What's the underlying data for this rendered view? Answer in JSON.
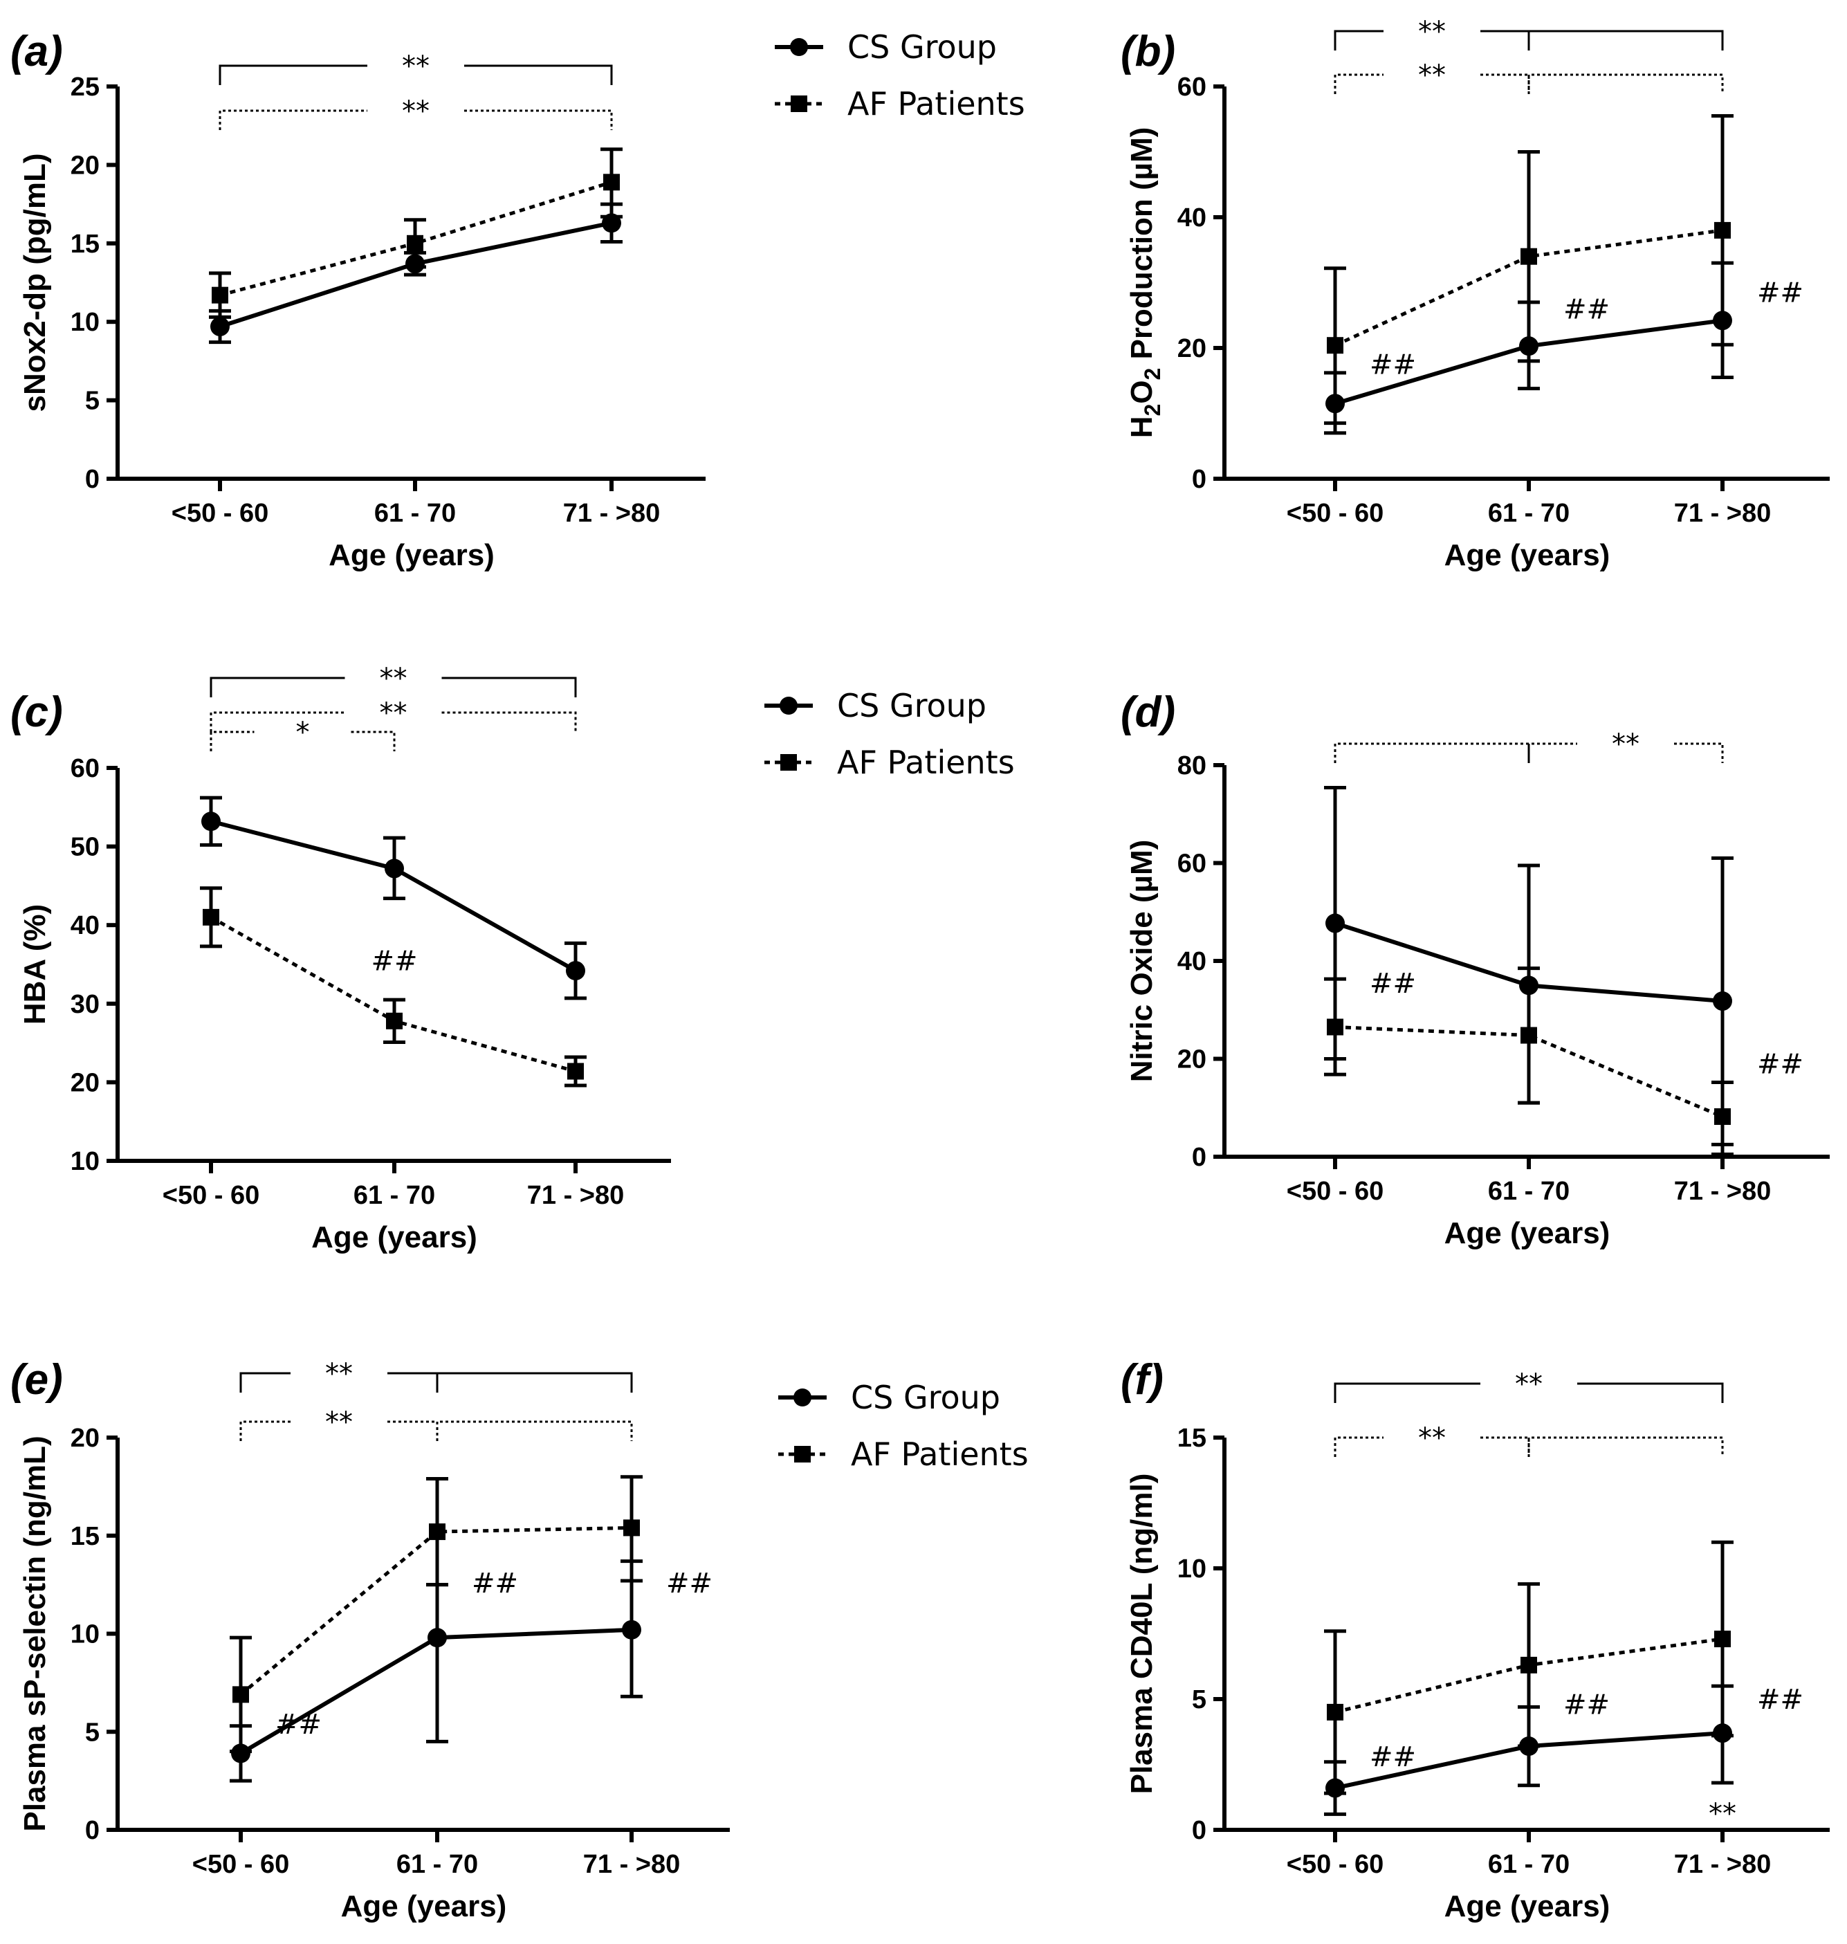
{
  "legend": {
    "entries": [
      {
        "name": "CS Group",
        "marker": "circle",
        "line": "solid"
      },
      {
        "name": "AF Patients",
        "marker": "square",
        "line": "dashed"
      }
    ]
  },
  "chart_data": [
    {
      "id": "a",
      "panel_label": "(a)",
      "type": "line",
      "categories": [
        "<50 - 60",
        "61 - 70",
        "71 - >80"
      ],
      "xlabel": "Age (years)",
      "ylabel": "sNox2-dp (pg/mL)",
      "ylim": [
        0,
        25
      ],
      "yticks": [
        0,
        5,
        10,
        15,
        20,
        25
      ],
      "series": [
        {
          "name": "CS Group",
          "values": [
            9.7,
            13.7,
            16.3
          ],
          "err_lo": [
            8.7,
            13.0,
            15.1
          ],
          "err_hi": [
            10.7,
            14.4,
            17.5
          ]
        },
        {
          "name": "AF Patients",
          "values": [
            11.7,
            15.0,
            18.9
          ],
          "err_lo": [
            10.3,
            13.5,
            16.7
          ],
          "err_hi": [
            13.1,
            16.5,
            21.0
          ]
        }
      ],
      "brackets": [
        {
          "from": 0,
          "to": 2,
          "label": "**",
          "style": "solid"
        },
        {
          "from": 0,
          "to": 2,
          "label": "**",
          "style": "dotted"
        }
      ],
      "annotations": []
    },
    {
      "id": "b",
      "panel_label": "(b)",
      "type": "line",
      "categories": [
        "<50 - 60",
        "61 - 70",
        "71 - >80"
      ],
      "xlabel": "Age (years)",
      "ylabel_parts": [
        "H",
        "2",
        "O",
        "2",
        " Production (µM)"
      ],
      "ylim": [
        0,
        60
      ],
      "yticks": [
        0,
        20,
        40,
        60
      ],
      "series": [
        {
          "name": "CS Group",
          "values": [
            11.5,
            20.3,
            24.2
          ],
          "err_lo": [
            7.0,
            13.8,
            15.5
          ],
          "err_hi": [
            16.2,
            27.0,
            33.0
          ]
        },
        {
          "name": "AF Patients",
          "values": [
            20.4,
            34.0,
            38.0
          ],
          "err_lo": [
            8.5,
            18.0,
            20.5
          ],
          "err_hi": [
            32.2,
            50.0,
            55.5
          ]
        }
      ],
      "brackets": [
        {
          "from": 0,
          "to": 1,
          "label": "**",
          "style": "solid"
        },
        {
          "from": 1,
          "to": 2,
          "label": "",
          "style": "solid"
        },
        {
          "from": 0,
          "to": 1,
          "label": "**",
          "style": "dotted"
        },
        {
          "from": 1,
          "to": 2,
          "label": "",
          "style": "dotted"
        }
      ],
      "annotations": [
        {
          "label": "##",
          "x": 0,
          "y": 17.5,
          "side": "right"
        },
        {
          "label": "##",
          "x": 1,
          "y": 26,
          "side": "right"
        },
        {
          "label": "##",
          "x": 2,
          "y": 28.5,
          "side": "right"
        }
      ]
    },
    {
      "id": "c",
      "panel_label": "(c)",
      "type": "line",
      "categories": [
        "<50 - 60",
        "61 - 70",
        "71 - >80"
      ],
      "xlabel": "Age (years)",
      "ylabel": "HBA (%)",
      "ylim": [
        10,
        60
      ],
      "yticks": [
        10,
        20,
        30,
        40,
        50,
        60
      ],
      "series": [
        {
          "name": "CS Group",
          "values": [
            53.2,
            47.2,
            34.2
          ],
          "err_lo": [
            50.2,
            43.4,
            30.7
          ],
          "err_hi": [
            56.2,
            51.1,
            37.7
          ]
        },
        {
          "name": "AF Patients",
          "values": [
            41.0,
            27.8,
            21.4
          ],
          "err_lo": [
            37.3,
            25.1,
            19.6
          ],
          "err_hi": [
            44.7,
            30.5,
            23.2
          ]
        }
      ],
      "brackets": [
        {
          "from": 0,
          "to": 2,
          "label": "**",
          "style": "solid"
        },
        {
          "from": 0,
          "to": 2,
          "label": "**",
          "style": "dotted"
        },
        {
          "from": 0,
          "to": 1,
          "label": "*",
          "style": "dotted"
        }
      ],
      "annotations": [
        {
          "label": "##",
          "x": 1,
          "y": 35.5,
          "side": "center"
        }
      ]
    },
    {
      "id": "d",
      "panel_label": "(d)",
      "type": "line",
      "categories": [
        "<50 - 60",
        "61 - 70",
        "71 - >80"
      ],
      "xlabel": "Age (years)",
      "ylabel": "Nitric Oxide (µM)",
      "ylim": [
        0,
        80
      ],
      "yticks": [
        0,
        20,
        40,
        60,
        80
      ],
      "series": [
        {
          "name": "CS Group",
          "values": [
            47.7,
            35.0,
            31.8
          ],
          "err_lo": [
            20.0,
            11.0,
            2.5
          ],
          "err_hi": [
            75.4,
            59.5,
            61.0
          ]
        },
        {
          "name": "AF Patients",
          "values": [
            26.5,
            24.8,
            8.2
          ],
          "err_lo": [
            16.8,
            11.0,
            0.5
          ],
          "err_hi": [
            36.3,
            38.5,
            15.2
          ]
        }
      ],
      "brackets": [
        {
          "from": 0,
          "to": 1,
          "label": "",
          "style": "dotted"
        },
        {
          "from": 1,
          "to": 2,
          "label": "**",
          "style": "dotted"
        }
      ],
      "annotations": [
        {
          "label": "##",
          "x": 0,
          "y": 35.5,
          "side": "right"
        },
        {
          "label": "##",
          "x": 2,
          "y": 19.0,
          "side": "right"
        }
      ]
    },
    {
      "id": "e",
      "panel_label": "(e)",
      "type": "line",
      "categories": [
        "<50 - 60",
        "61 - 70",
        "71 - >80"
      ],
      "xlabel": "Age (years)",
      "ylabel": "Plasma sP-selectin (ng/mL)",
      "ylim": [
        0,
        20
      ],
      "yticks": [
        0,
        5,
        10,
        15,
        20
      ],
      "series": [
        {
          "name": "CS Group",
          "values": [
            3.9,
            9.8,
            10.2
          ],
          "err_lo": [
            2.5,
            4.5,
            6.8
          ],
          "err_hi": [
            5.3,
            12.5,
            13.7
          ]
        },
        {
          "name": "AF Patients",
          "values": [
            6.9,
            15.2,
            15.4
          ],
          "err_lo": [
            4.0,
            12.5,
            12.7
          ],
          "err_hi": [
            9.8,
            17.9,
            18.0
          ]
        }
      ],
      "brackets": [
        {
          "from": 0,
          "to": 1,
          "label": "**",
          "style": "solid"
        },
        {
          "from": 1,
          "to": 2,
          "label": "",
          "style": "solid"
        },
        {
          "from": 0,
          "to": 1,
          "label": "**",
          "style": "dotted"
        },
        {
          "from": 1,
          "to": 2,
          "label": "",
          "style": "dotted"
        }
      ],
      "annotations": [
        {
          "label": "##",
          "x": 0,
          "y": 5.4,
          "side": "right"
        },
        {
          "label": "##",
          "x": 1,
          "y": 12.6,
          "side": "right"
        },
        {
          "label": "##",
          "x": 2,
          "y": 12.6,
          "side": "right"
        }
      ]
    },
    {
      "id": "f",
      "panel_label": "(f)",
      "type": "line",
      "categories": [
        "<50 - 60",
        "61 - 70",
        "71 - >80"
      ],
      "xlabel": "Age (years)",
      "ylabel": "Plasma CD40L (ng/ml)",
      "ylim": [
        0,
        15
      ],
      "yticks": [
        0,
        5,
        10,
        15
      ],
      "series": [
        {
          "name": "CS Group",
          "values": [
            1.6,
            3.2,
            3.7
          ],
          "err_lo": [
            0.6,
            1.7,
            1.8
          ],
          "err_hi": [
            2.6,
            4.7,
            5.5
          ]
        },
        {
          "name": "AF Patients",
          "values": [
            4.5,
            6.3,
            7.3
          ],
          "err_lo": [
            1.4,
            3.2,
            3.6
          ],
          "err_hi": [
            7.6,
            9.4,
            11.0
          ]
        }
      ],
      "brackets": [
        {
          "from": 0,
          "to": 2,
          "label": "**",
          "style": "solid"
        },
        {
          "from": 0,
          "to": 1,
          "label": "**",
          "style": "dotted"
        },
        {
          "from": 1,
          "to": 2,
          "label": "",
          "style": "dotted"
        }
      ],
      "annotations": [
        {
          "label": "##",
          "x": 0,
          "y": 2.8,
          "side": "right"
        },
        {
          "label": "##",
          "x": 1,
          "y": 4.8,
          "side": "right"
        },
        {
          "label": "##",
          "x": 2,
          "y": 5.0,
          "side": "right"
        },
        {
          "label": "**",
          "x": 2,
          "y": 0.0,
          "side": "center"
        }
      ]
    }
  ]
}
